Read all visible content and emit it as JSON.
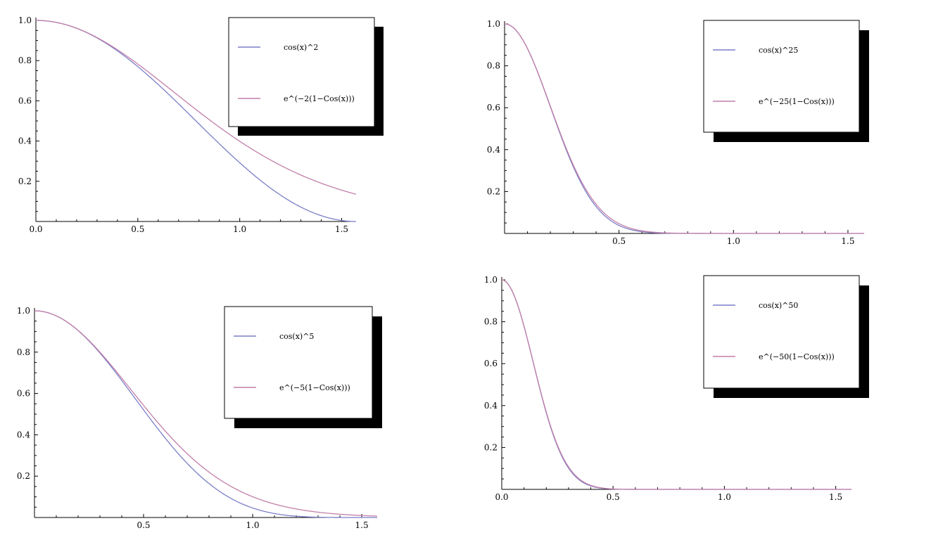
{
  "colors": {
    "series_cos": "#7b7fc8",
    "series_exp": "#c27fa8",
    "axis": "#000000",
    "legend_shadow": "#000000"
  },
  "chart_data": [
    {
      "type": "line",
      "title": "",
      "xlabel": "",
      "ylabel": "",
      "xlim": [
        0,
        1.5708
      ],
      "ylim": [
        0,
        1.0
      ],
      "exponent": 2,
      "grid": false,
      "legend_position": "top-right",
      "xticks": [
        "0.0",
        "0.5",
        "1.0",
        "1.5"
      ],
      "yticks": [
        "0.2",
        "0.4",
        "0.6",
        "0.8",
        "1.0"
      ],
      "series": [
        {
          "name": "cos(x)^2",
          "color": "#7b7fc8",
          "x": [
            0,
            0.1963,
            0.3927,
            0.589,
            0.7854,
            0.9817,
            1.1781,
            1.3744,
            1.5708
          ],
          "y": [
            1.0,
            0.962,
            0.854,
            0.691,
            0.5,
            0.309,
            0.146,
            0.038,
            0.0
          ]
        },
        {
          "name": "e^(−2(1−Cos(x)))",
          "color": "#c27fa8",
          "x": [
            0,
            0.1963,
            0.3927,
            0.589,
            0.7854,
            0.9817,
            1.1781,
            1.3744,
            1.5708
          ],
          "y": [
            1.0,
            0.962,
            0.859,
            0.716,
            0.557,
            0.406,
            0.279,
            0.182,
            0.135
          ]
        }
      ]
    },
    {
      "type": "line",
      "title": "",
      "xlabel": "",
      "ylabel": "",
      "xlim": [
        0,
        1.5708
      ],
      "ylim": [
        0,
        1.0
      ],
      "exponent": 25,
      "grid": false,
      "legend_position": "top-right",
      "xticks": [
        "0.5",
        "1.0",
        "1.5"
      ],
      "yticks": [
        "0.2",
        "0.4",
        "0.6",
        "0.8",
        "1.0"
      ],
      "series": [
        {
          "name": "cos(x)^25",
          "color": "#7b7fc8",
          "x": [
            0,
            0.1,
            0.2,
            0.3,
            0.4,
            0.5,
            0.6,
            0.8,
            1.0,
            1.5708
          ],
          "y": [
            1.0,
            0.882,
            0.606,
            0.319,
            0.128,
            0.039,
            0.009,
            0.0,
            0.0,
            0.0
          ]
        },
        {
          "name": "e^(−25(1−Cos(x)))",
          "color": "#c27fa8",
          "x": [
            0,
            0.1,
            0.2,
            0.3,
            0.4,
            0.5,
            0.6,
            0.8,
            1.0,
            1.5708
          ],
          "y": [
            1.0,
            0.883,
            0.609,
            0.327,
            0.137,
            0.045,
            0.012,
            0.0,
            0.0,
            0.0
          ]
        }
      ]
    },
    {
      "type": "line",
      "title": "",
      "xlabel": "",
      "ylabel": "",
      "xlim": [
        0,
        1.5708
      ],
      "ylim": [
        0,
        1.0
      ],
      "exponent": 5,
      "grid": false,
      "legend_position": "top-right",
      "xticks": [
        "0.5",
        "1.0",
        "1.5"
      ],
      "yticks": [
        "0.2",
        "0.4",
        "0.6",
        "0.8",
        "1.0"
      ],
      "series": [
        {
          "name": "cos(x)^5",
          "color": "#7b7fc8",
          "x": [
            0,
            0.2,
            0.4,
            0.6,
            0.8,
            1.0,
            1.2,
            1.4,
            1.5708
          ],
          "y": [
            1.0,
            0.904,
            0.662,
            0.388,
            0.17,
            0.046,
            0.006,
            0.0,
            0.0
          ]
        },
        {
          "name": "e^(−5(1−Cos(x)))",
          "color": "#c27fa8",
          "x": [
            0,
            0.2,
            0.4,
            0.6,
            0.8,
            1.0,
            1.2,
            1.4,
            1.5708
          ],
          "y": [
            1.0,
            0.905,
            0.672,
            0.417,
            0.219,
            0.1,
            0.042,
            0.016,
            0.007
          ]
        }
      ]
    },
    {
      "type": "line",
      "title": "",
      "xlabel": "",
      "ylabel": "",
      "xlim": [
        0,
        1.5708
      ],
      "ylim": [
        0,
        1.0
      ],
      "exponent": 50,
      "grid": false,
      "legend_position": "top-right",
      "xticks": [
        "0.0",
        "0.5",
        "1.0",
        "1.5"
      ],
      "yticks": [
        "0.2",
        "0.4",
        "0.6",
        "0.8",
        "1.0"
      ],
      "series": [
        {
          "name": "cos(x)^50",
          "color": "#7b7fc8",
          "x": [
            0,
            0.1,
            0.2,
            0.3,
            0.4,
            0.5,
            0.7,
            1.0,
            1.5708
          ],
          "y": [
            1.0,
            0.778,
            0.368,
            0.102,
            0.017,
            0.002,
            0.0,
            0.0,
            0.0
          ]
        },
        {
          "name": "e^(−50(1−Cos(x)))",
          "color": "#c27fa8",
          "x": [
            0,
            0.1,
            0.2,
            0.3,
            0.4,
            0.5,
            0.7,
            1.0,
            1.5708
          ],
          "y": [
            1.0,
            0.779,
            0.371,
            0.107,
            0.019,
            0.002,
            0.0,
            0.0,
            0.0
          ]
        }
      ]
    }
  ]
}
